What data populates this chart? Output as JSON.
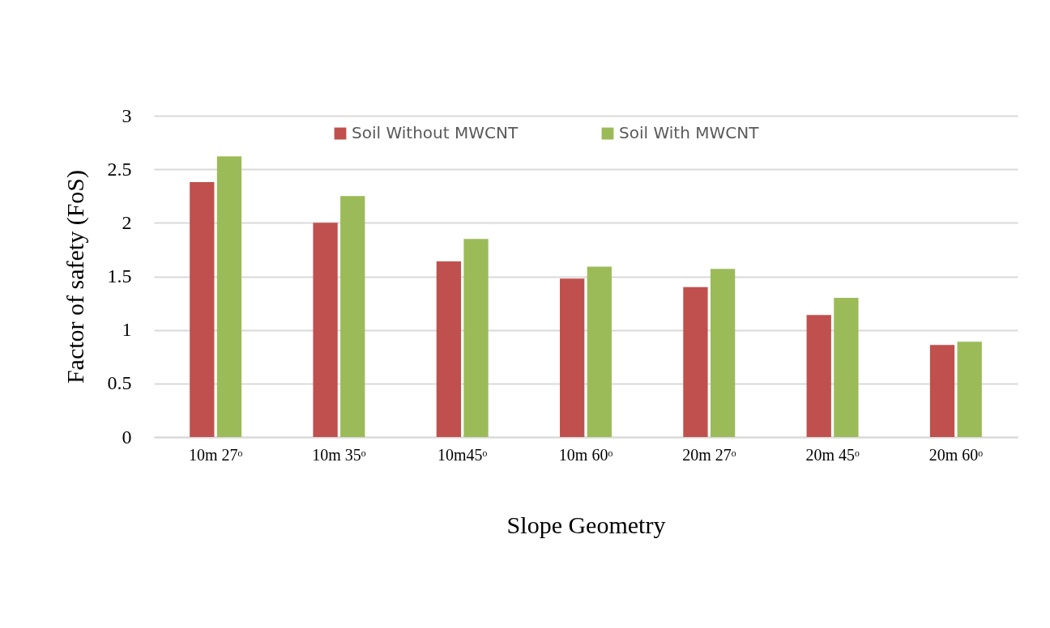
{
  "chart_data": {
    "type": "bar",
    "xlabel": "Slope Geometry",
    "ylabel": "Factor of safety (FoS)",
    "categories": [
      "10m 27ᵒ",
      "10m 35ᵒ",
      "10m45ᵒ",
      "10m 60ᵒ",
      "20m 27ᵒ",
      "20m 45ᵒ",
      "20m 60ᵒ"
    ],
    "series": [
      {
        "name": "Soil Without MWCNT",
        "color": "#c0504d",
        "values": [
          2.38,
          2.0,
          1.64,
          1.48,
          1.4,
          1.14,
          0.86
        ]
      },
      {
        "name": "Soil With MWCNT",
        "color": "#9bbb59",
        "values": [
          2.62,
          2.25,
          1.85,
          1.59,
          1.57,
          1.3,
          0.89
        ]
      }
    ],
    "ylim": [
      0,
      3
    ],
    "yticks": [
      0,
      0.5,
      1,
      1.5,
      2,
      2.5,
      3
    ],
    "grid": "y",
    "legend": "top"
  }
}
